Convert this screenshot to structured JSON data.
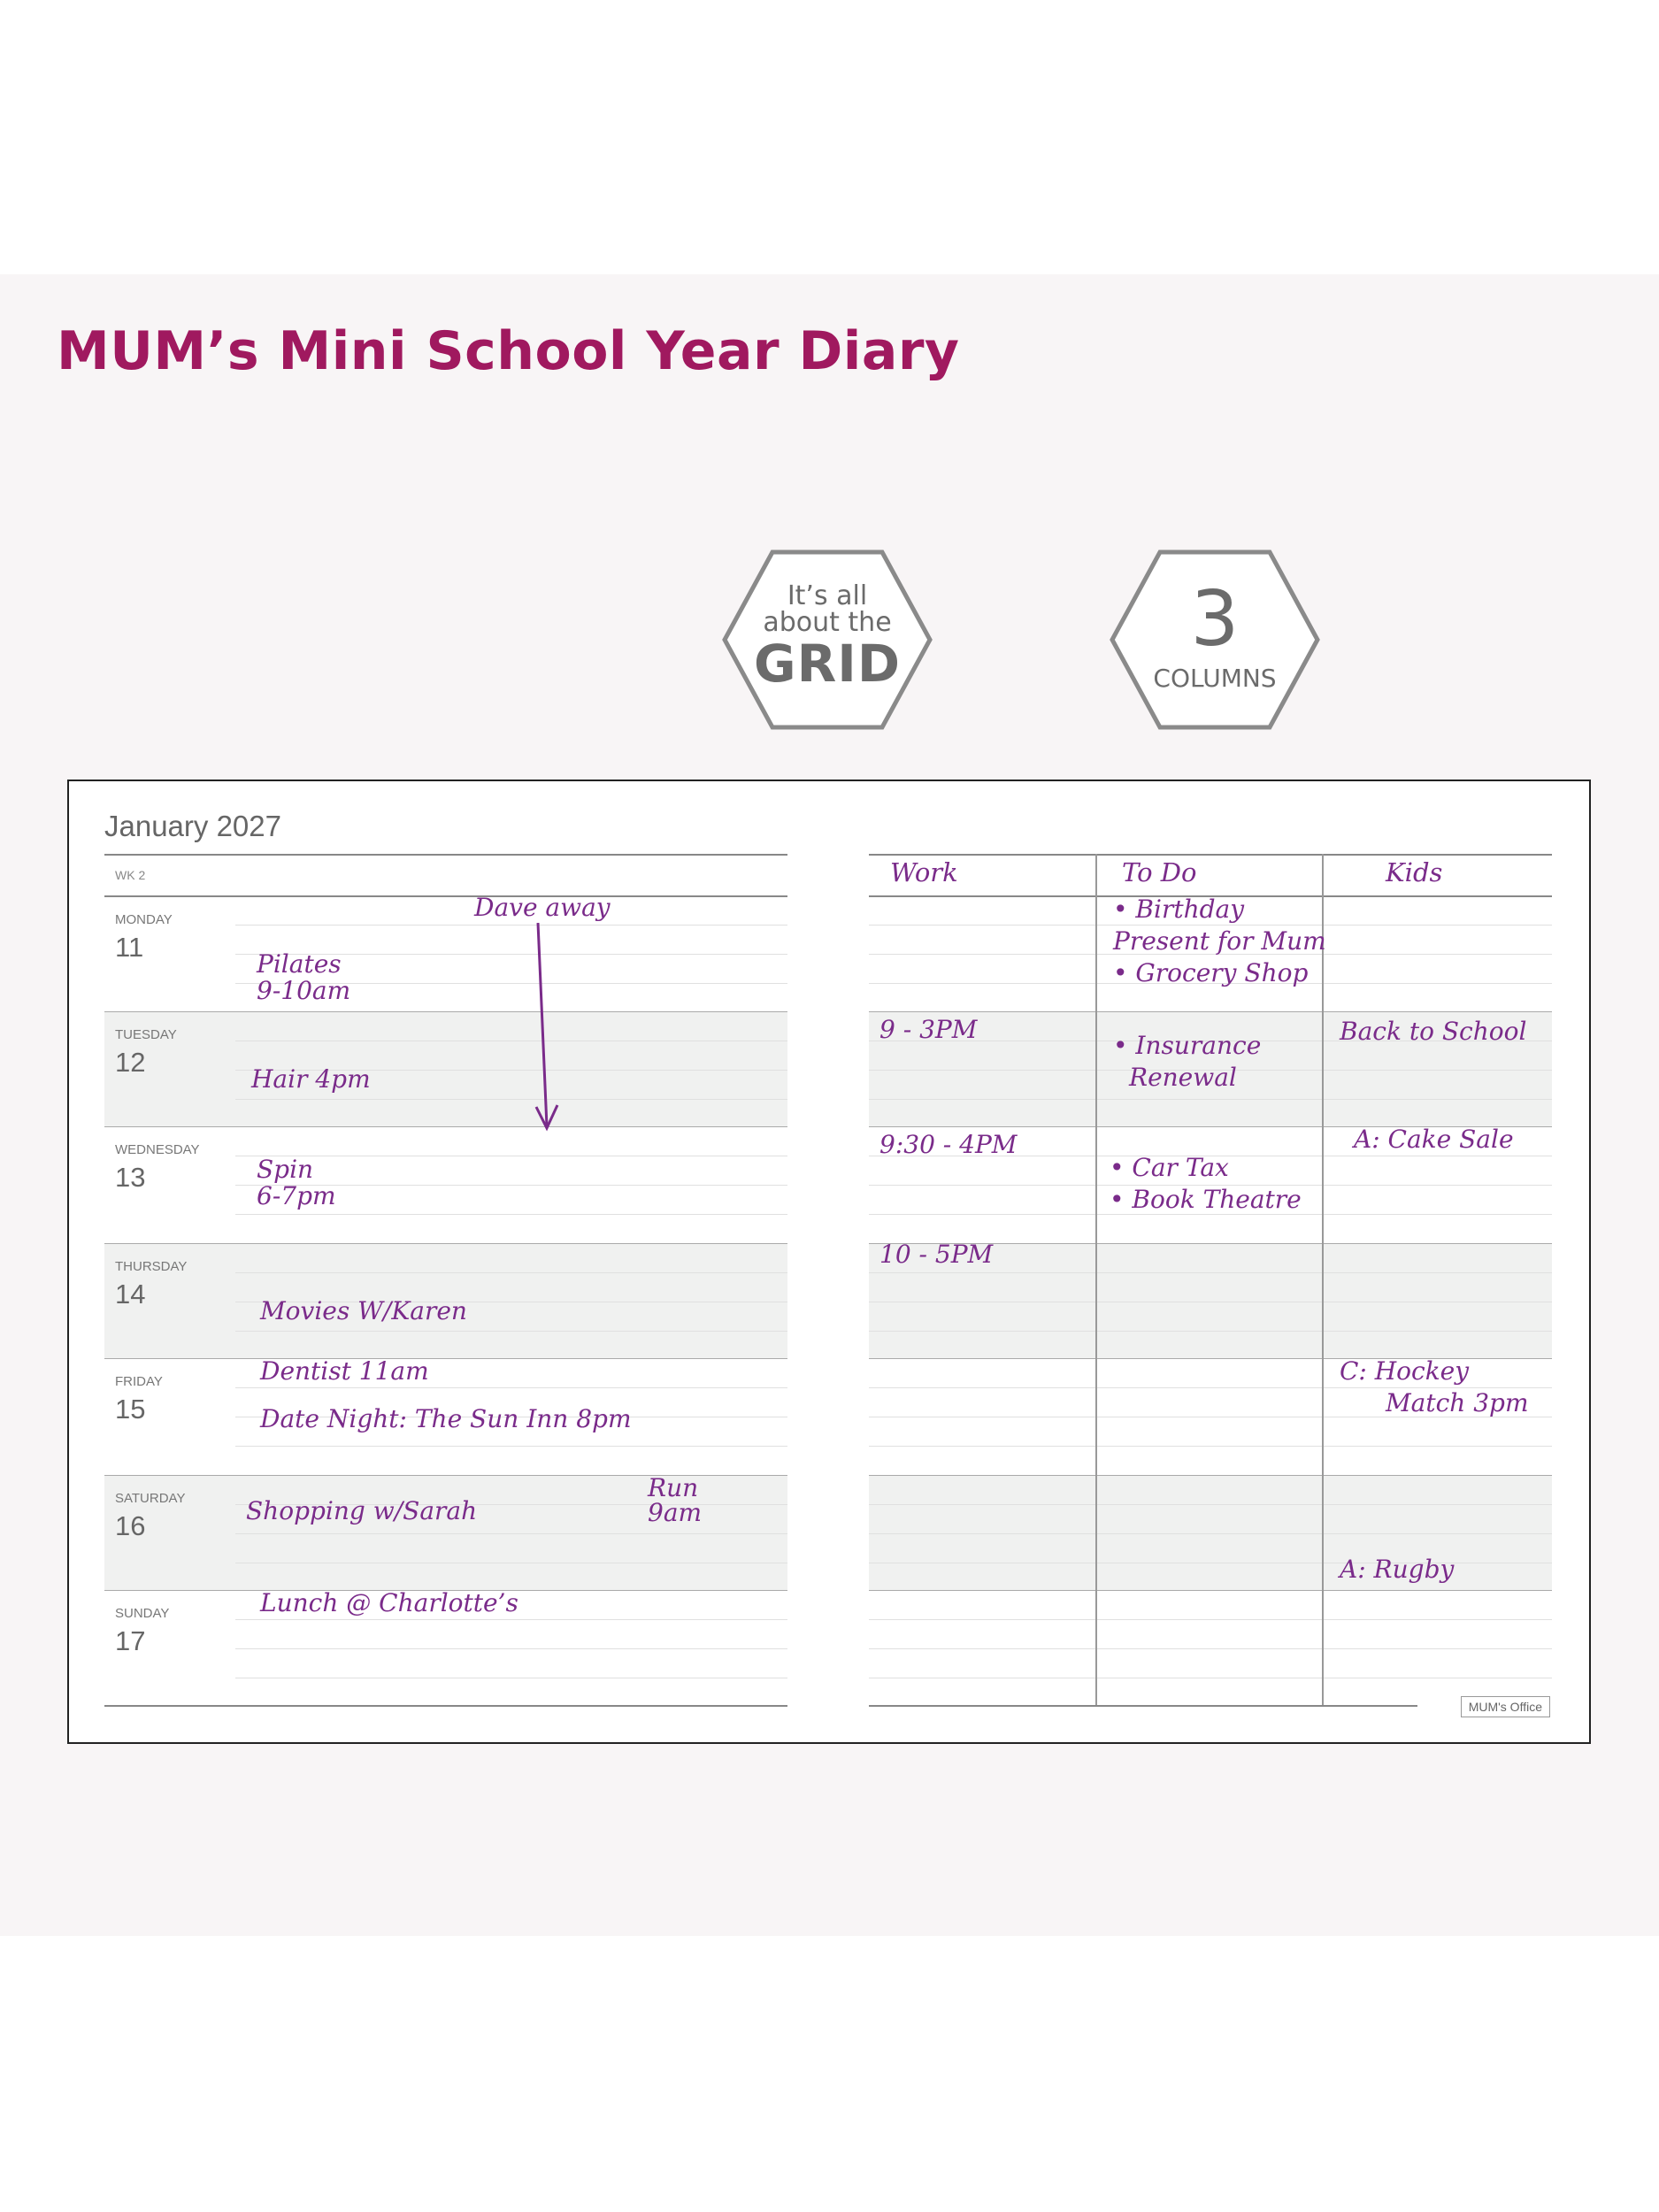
{
  "page": {
    "title": "MUM’s Mini School Year Diary"
  },
  "badges": {
    "grid": {
      "line1": "It’s all",
      "line2": "about the",
      "line3": "GRID"
    },
    "columns": {
      "number": "3",
      "label": "COLUMNS"
    }
  },
  "diary": {
    "month": "January 2027",
    "week": "WK 2",
    "days": [
      {
        "name": "MONDAY",
        "number": "11"
      },
      {
        "name": "TUESDAY",
        "number": "12"
      },
      {
        "name": "WEDNESDAY",
        "number": "13"
      },
      {
        "name": "THURSDAY",
        "number": "14"
      },
      {
        "name": "FRIDAY",
        "number": "15"
      },
      {
        "name": "SATURDAY",
        "number": "16"
      },
      {
        "name": "SUNDAY",
        "number": "17"
      }
    ],
    "left_notes": {
      "dave": "Dave away",
      "pilates1": "Pilates",
      "pilates2": "9-10am",
      "hair": "Hair 4pm",
      "spin1": "Spin",
      "spin2": "6-7pm",
      "movies": "Movies W/Karen",
      "dentist": "Dentist 11am",
      "date_night": "Date Night: The Sun Inn 8pm",
      "shopping": "Shopping w/Sarah",
      "run1": "Run",
      "run2": "9am",
      "lunch": "Lunch @ Charlotte’s"
    },
    "columns": {
      "work": "Work",
      "todo": "To Do",
      "kids": "Kids"
    },
    "work": {
      "tue": "9 - 3PM",
      "wed": "9:30 - 4PM",
      "thu": "10 - 5PM"
    },
    "todo": {
      "birthday1": "• Birthday",
      "birthday2": "Present for Mum",
      "grocery": "• Grocery Shop",
      "insurance1": "• Insurance",
      "insurance2": "Renewal",
      "cartax": "• Car Tax",
      "theatre": "• Book Theatre"
    },
    "kids": {
      "school": "Back to School",
      "cake": "A: Cake Sale",
      "hockey1": "C: Hockey",
      "hockey2": "Match 3pm",
      "rugby": "A: Rugby"
    },
    "brand": "MUM's Office"
  },
  "colors": {
    "title": "#a0195f",
    "handwriting": "#7a2b8a",
    "shade": "#f0f1f0"
  }
}
